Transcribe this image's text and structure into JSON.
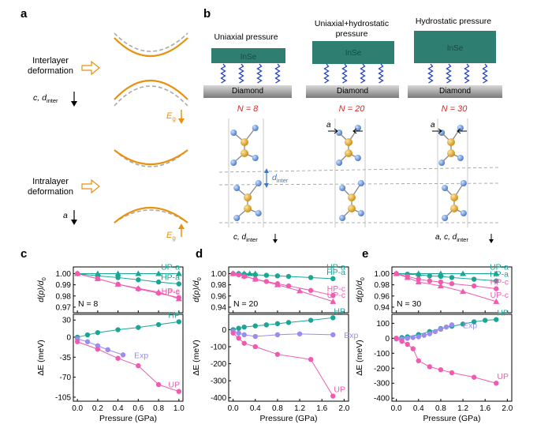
{
  "figure": {
    "panel_labels": [
      "a",
      "b",
      "c",
      "d",
      "e"
    ],
    "panel_a": {
      "label_interlayer": [
        "Interlayer",
        "deformation"
      ],
      "label_intralayer": [
        "Intralayer",
        "deformation"
      ],
      "axis_c": "c, d",
      "axis_c_sub": "inter",
      "axis_a": "a",
      "eg": "E",
      "eg_sub": "g"
    },
    "panel_b": {
      "columns": [
        {
          "title": [
            "Uniaxial pressure"
          ],
          "n_label": "N = 8",
          "top_label": "",
          "bottom_label": "c, d",
          "bottom_sub": "inter"
        },
        {
          "title": [
            "Uniaxial+hydrostatic",
            "pressure"
          ],
          "n_label": "N = 20",
          "top_label": "a",
          "bottom_label": "",
          "bottom_sub": ""
        },
        {
          "title": [
            "Hydrostatic pressure"
          ],
          "n_label": "N = 30",
          "top_label": "a",
          "bottom_label": "a, c, d",
          "bottom_sub": "inter"
        }
      ],
      "slab_label": "InSe",
      "substrate_label": "Diamond",
      "dinter_label": "d",
      "dinter_sub": "inter"
    },
    "colors": {
      "orange": "#E8920F",
      "teal": "#1AA595",
      "pink": "#F05BB0",
      "lavender": "#9A8CF0",
      "slab": "#2E7F72",
      "red_label": "#D42A2A",
      "blue_atom": "#5B8FD8",
      "gold_atom": "#E0A21A"
    }
  },
  "chart_data": [
    {
      "type": "line",
      "panel": "c",
      "xlabel": "Pressure (GPa)",
      "x_ticks": [
        0.0,
        0.2,
        0.4,
        0.6,
        0.8,
        1.0
      ],
      "top": {
        "ylabel": "d(p)/d",
        "ylabel_sub": "0",
        "ylim": [
          0.965,
          1.006
        ],
        "y_ticks": [
          1.0,
          0.99,
          0.98,
          0.97
        ],
        "annotation": "N = 8",
        "series": [
          {
            "name": "UP-a",
            "marker": "triangle",
            "color": "teal",
            "x": [
              0,
              0.2,
              0.4,
              0.6,
              0.8,
              1.0
            ],
            "y": [
              1.0,
              1.0,
              1.0,
              1.0,
              1.0,
              1.0
            ]
          },
          {
            "name": "HP-a",
            "marker": "circle",
            "color": "teal",
            "x": [
              0,
              0.2,
              0.4,
              0.6,
              0.8,
              1.0
            ],
            "y": [
              1.0,
              0.998,
              0.9965,
              0.9945,
              0.9925,
              0.9908
            ]
          },
          {
            "name": "HP-c",
            "marker": "circle",
            "color": "pink",
            "x": [
              0,
              0.2,
              0.4,
              0.6,
              0.8,
              1.0
            ],
            "y": [
              1.0,
              0.9955,
              0.9905,
              0.9863,
              0.9825,
              0.9785
            ]
          },
          {
            "name": "UP-c",
            "marker": "triangle",
            "color": "pink",
            "x": [
              0,
              0.2,
              0.4,
              0.6,
              0.8,
              1.0
            ],
            "y": [
              1.0,
              0.9955,
              0.9905,
              0.9868,
              0.9835,
              0.9775
            ]
          }
        ]
      },
      "bottom": {
        "ylabel": "ΔE (meV)",
        "ylim": [
          -112,
          40
        ],
        "y_ticks": [
          30,
          0,
          -35,
          -70,
          -105
        ],
        "series": [
          {
            "name": "HP",
            "marker": "circle",
            "color": "teal",
            "x": [
              0,
              0.1,
              0.2,
              0.4,
              0.6,
              0.8,
              1.0
            ],
            "y": [
              0,
              4,
              8,
              13,
              17,
              22,
              27
            ]
          },
          {
            "name": "Exp",
            "marker": "circle",
            "color": "lavender",
            "x": [
              0,
              0.1,
              0.2,
              0.3,
              0.45
            ],
            "y": [
              -3,
              -8,
              -15,
              -22,
              -31
            ]
          },
          {
            "name": "UP",
            "marker": "circle",
            "color": "pink",
            "x": [
              0,
              0.2,
              0.4,
              0.6,
              0.8,
              1.0
            ],
            "y": [
              -8,
              -21,
              -37,
              -50,
              -83,
              -95
            ]
          }
        ]
      }
    },
    {
      "type": "line",
      "panel": "d",
      "xlabel": "Pressure (GPa)",
      "x_ticks": [
        0.0,
        0.4,
        0.8,
        1.2,
        1.6,
        2.0
      ],
      "top": {
        "ylabel": "d(p)/d",
        "ylabel_sub": "0",
        "ylim": [
          0.93,
          1.012
        ],
        "y_ticks": [
          1.0,
          0.98,
          0.96,
          0.94
        ],
        "annotation": "N = 20",
        "series": [
          {
            "name": "UP-a",
            "marker": "triangle",
            "color": "teal",
            "x": [
              0,
              0.1,
              0.2,
              0.3,
              0.4
            ],
            "y": [
              1.0,
              1.0,
              1.0,
              1.0,
              1.0
            ]
          },
          {
            "name": "HP-a",
            "marker": "circle",
            "color": "teal",
            "x": [
              0,
              0.1,
              0.2,
              0.4,
              0.6,
              0.8,
              1.0,
              1.4,
              1.8
            ],
            "y": [
              1.0,
              1.0,
              0.999,
              0.998,
              0.997,
              0.996,
              0.995,
              0.993,
              0.991
            ]
          },
          {
            "name": "HP-c",
            "marker": "circle",
            "color": "pink",
            "x": [
              0,
              0.1,
              0.2,
              0.4,
              0.6,
              0.8,
              1.0,
              1.4,
              1.8
            ],
            "y": [
              1.0,
              0.998,
              0.995,
              0.99,
              0.986,
              0.982,
              0.978,
              0.97,
              0.961
            ]
          },
          {
            "name": "UP-c",
            "marker": "triangle",
            "color": "pink",
            "x": [
              0,
              0.2,
              0.4,
              0.8,
              1.2,
              1.8
            ],
            "y": [
              1.0,
              0.996,
              0.99,
              0.98,
              0.969,
              0.95
            ]
          }
        ]
      },
      "bottom": {
        "ylabel": "ΔE (meV)",
        "ylim": [
          -420,
          90
        ],
        "y_ticks": [
          0,
          -100,
          -200,
          -300,
          -400
        ],
        "series": [
          {
            "name": "HP",
            "marker": "circle",
            "color": "teal",
            "x": [
              0,
              0.1,
              0.2,
              0.4,
              0.6,
              0.8,
              1.0,
              1.4,
              1.8
            ],
            "y": [
              0,
              8,
              15,
              22,
              28,
              35,
              42,
              55,
              70
            ]
          },
          {
            "name": "Exp",
            "marker": "circle",
            "color": "lavender",
            "x": [
              0,
              0.1,
              0.2,
              0.4,
              0.8,
              1.2,
              1.8
            ],
            "y": [
              -10,
              -20,
              -30,
              -40,
              -30,
              -25,
              -30
            ]
          },
          {
            "name": "UP",
            "marker": "circle",
            "color": "pink",
            "x": [
              0,
              0.1,
              0.2,
              0.4,
              0.8,
              1.4,
              1.8
            ],
            "y": [
              -20,
              -50,
              -80,
              -100,
              -145,
              -175,
              -390
            ]
          }
        ]
      }
    },
    {
      "type": "line",
      "panel": "e",
      "xlabel": "Pressure (GPa)",
      "x_ticks": [
        0.0,
        0.4,
        0.8,
        1.2,
        1.6,
        2.0
      ],
      "top": {
        "ylabel": "d(p)/d",
        "ylabel_sub": "0",
        "ylim": [
          0.93,
          1.012
        ],
        "y_ticks": [
          1.0,
          0.98,
          0.96,
          0.94
        ],
        "annotation": "N = 30",
        "series": [
          {
            "name": "UP-a",
            "marker": "triangle",
            "color": "teal",
            "x": [
              0,
              0.4,
              0.8,
              1.2,
              1.8
            ],
            "y": [
              1.0,
              1.0,
              1.0,
              1.0,
              1.0
            ]
          },
          {
            "name": "HP-a",
            "marker": "circle",
            "color": "teal",
            "x": [
              0,
              0.2,
              0.4,
              0.6,
              0.8,
              1.0,
              1.4,
              1.8
            ],
            "y": [
              1.0,
              0.999,
              0.998,
              0.996,
              0.995,
              0.993,
              0.99,
              0.987
            ]
          },
          {
            "name": "HP-c",
            "marker": "circle",
            "color": "pink",
            "x": [
              0,
              0.2,
              0.4,
              0.6,
              0.8,
              1.0,
              1.4,
              1.8
            ],
            "y": [
              1.0,
              0.995,
              0.99,
              0.987,
              0.985,
              0.982,
              0.978,
              0.973
            ]
          },
          {
            "name": "UP-c",
            "marker": "triangle",
            "color": "pink",
            "x": [
              0,
              0.2,
              0.4,
              0.8,
              1.2,
              1.8
            ],
            "y": [
              1.0,
              0.993,
              0.985,
              0.978,
              0.968,
              0.95
            ]
          }
        ]
      },
      "bottom": {
        "ylabel": "ΔE (meV)",
        "ylim": [
          -420,
          160
        ],
        "y_ticks": [
          100,
          0,
          -100,
          -200,
          -300,
          -400
        ],
        "series": [
          {
            "name": "HP",
            "marker": "circle",
            "color": "teal",
            "x": [
              0,
              0.1,
              0.2,
              0.4,
              0.6,
              0.8,
              1.0,
              1.2,
              1.4,
              1.6,
              1.8
            ],
            "y": [
              0,
              5,
              10,
              25,
              45,
              65,
              80,
              95,
              110,
              120,
              125
            ]
          },
          {
            "name": "Exp",
            "marker": "circle",
            "color": "lavender",
            "x": [
              0,
              0.1,
              0.2,
              0.3,
              0.4,
              0.5,
              0.6,
              0.7,
              0.8,
              0.9,
              1.0
            ],
            "y": [
              -5,
              -5,
              0,
              5,
              10,
              20,
              30,
              45,
              60,
              75,
              90
            ]
          },
          {
            "name": "UP",
            "marker": "circle",
            "color": "pink",
            "x": [
              0,
              0.1,
              0.2,
              0.3,
              0.4,
              0.6,
              0.8,
              1.0,
              1.4,
              1.8
            ],
            "y": [
              0,
              -20,
              -40,
              -70,
              -150,
              -190,
              -210,
              -230,
              -260,
              -300
            ]
          }
        ]
      }
    }
  ]
}
